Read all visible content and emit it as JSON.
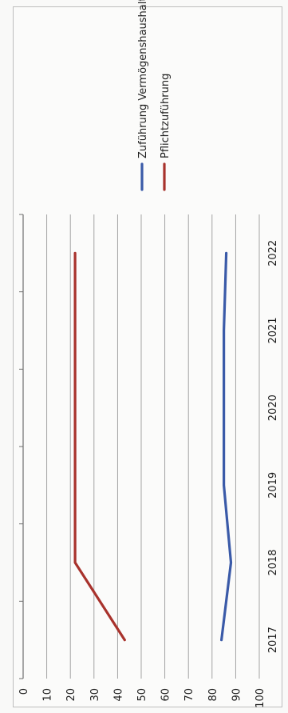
{
  "chart_data": {
    "type": "line",
    "orientation": "rotated-90",
    "categories": [
      "2017",
      "2018",
      "2019",
      "2020",
      "2021",
      "2022"
    ],
    "series": [
      {
        "name": "Zuführung Vermögenshaushalt",
        "color": "#3a5aa8",
        "values": [
          84,
          88,
          85,
          85,
          85,
          86
        ]
      },
      {
        "name": "Pflichtzuführung",
        "color": "#a8322c",
        "values": [
          43,
          22,
          22,
          22,
          22,
          22
        ]
      }
    ],
    "ylim": [
      0,
      100
    ],
    "yticks": [
      "0",
      "10",
      "20",
      "30",
      "40",
      "50",
      "60",
      "70",
      "80",
      "90",
      "100"
    ],
    "grid": true,
    "legend_position": "right",
    "title": "",
    "xlabel": "",
    "ylabel": ""
  }
}
